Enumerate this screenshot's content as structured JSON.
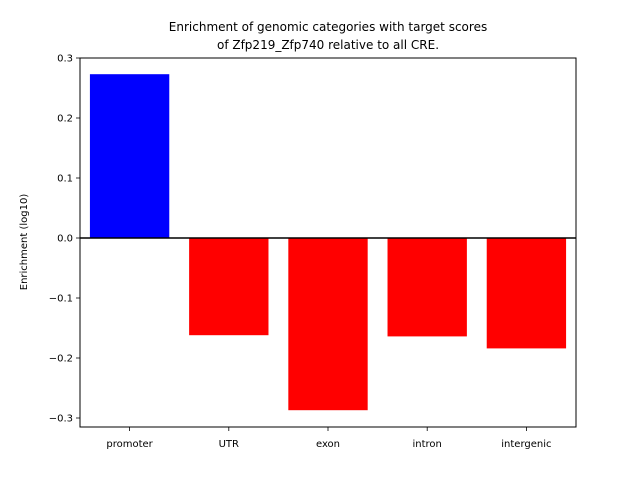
{
  "chart_data": {
    "type": "bar",
    "title_lines": [
      "Enrichment of genomic categories with target scores",
      "of Zfp219_Zfp740 relative to all CRE."
    ],
    "xlabel": "",
    "ylabel": "Enrichment (log10)",
    "categories": [
      "promoter",
      "UTR",
      "exon",
      "intron",
      "intergenic"
    ],
    "values": [
      0.273,
      -0.162,
      -0.287,
      -0.164,
      -0.184
    ],
    "colors": [
      "#0000ff",
      "#ff0000",
      "#ff0000",
      "#ff0000",
      "#ff0000"
    ],
    "ylim": [
      -0.315,
      0.3
    ],
    "yticks": [
      -0.3,
      -0.2,
      -0.1,
      0.0,
      0.1,
      0.2,
      0.3
    ],
    "ytick_labels": [
      "−0.3",
      "−0.2",
      "−0.1",
      "0.0",
      "0.1",
      "0.2",
      "0.3"
    ],
    "baseline": 0.0,
    "grid": false,
    "legend": "none"
  }
}
